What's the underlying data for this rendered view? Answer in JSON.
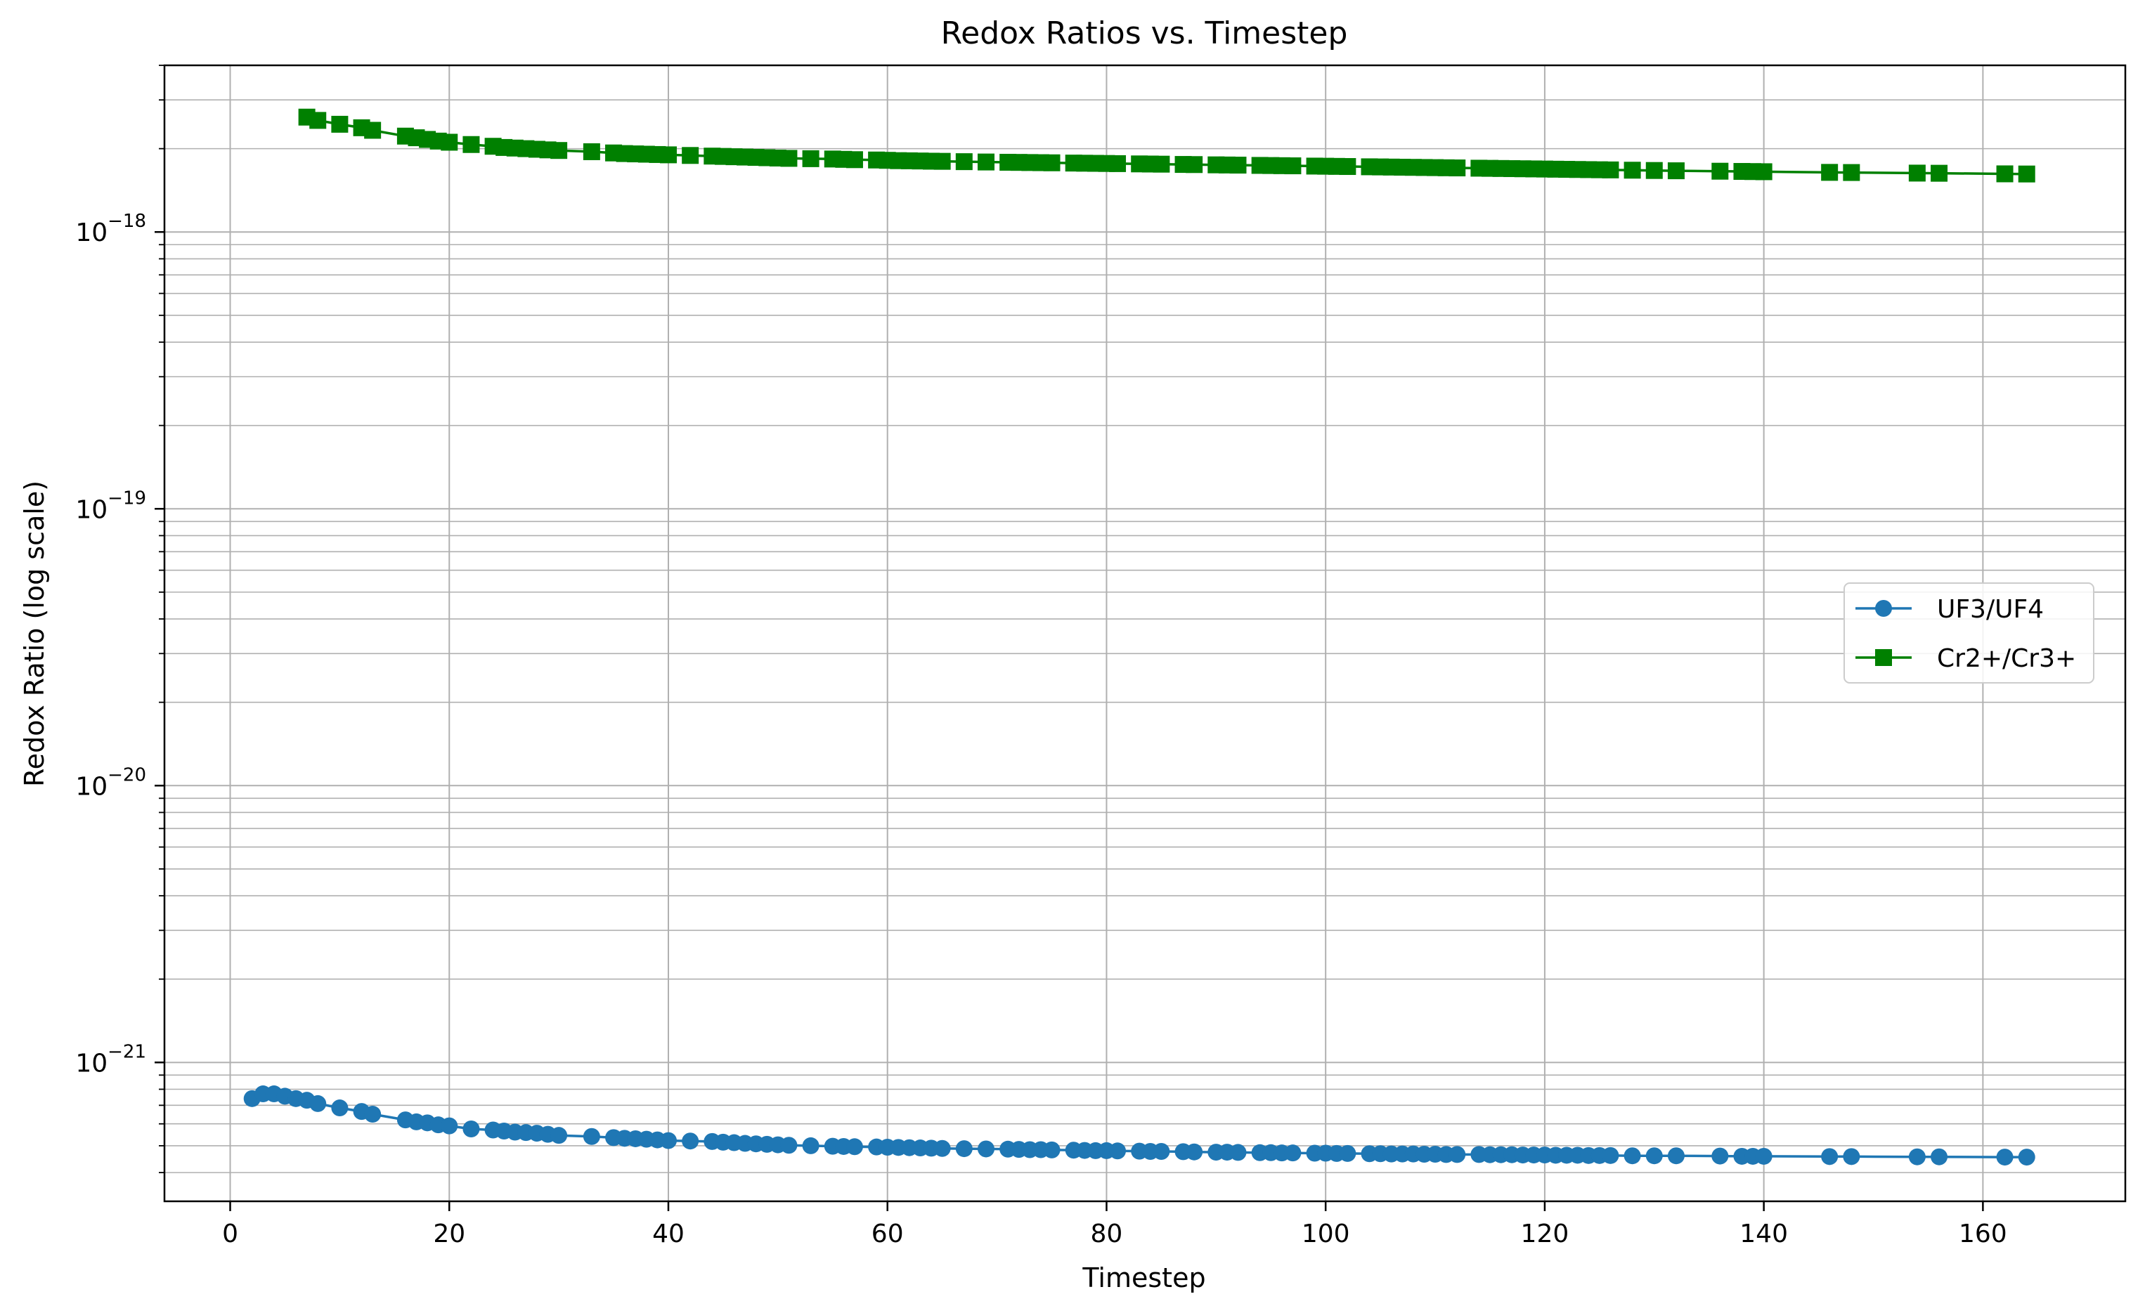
{
  "chart_data": {
    "type": "line",
    "title": "Redox Ratios vs. Timestep",
    "xlabel": "Timestep",
    "ylabel": "Redox Ratio (log scale)",
    "yscale": "log",
    "xlim": [
      -6,
      173
    ],
    "ylim": [
      3.15e-22,
      4e-18
    ],
    "grid": true,
    "legend_position": "center-right",
    "x_ticks": [
      0,
      20,
      40,
      60,
      80,
      100,
      120,
      140,
      160
    ],
    "x_tick_labels": [
      "0",
      "20",
      "40",
      "60",
      "80",
      "100",
      "120",
      "140",
      "160"
    ],
    "y_ticks": [
      {
        "value": 1e-18,
        "base": "10",
        "exp": "−18"
      },
      {
        "value": 1e-19,
        "base": "10",
        "exp": "−19"
      },
      {
        "value": 1e-20,
        "base": "10",
        "exp": "−20"
      },
      {
        "value": 1e-21,
        "base": "10",
        "exp": "−21"
      }
    ],
    "series": [
      {
        "name": "UF3/UF4",
        "color": "#1f77b4",
        "marker": "circle",
        "x": [
          2,
          3,
          4,
          5,
          6,
          7,
          8,
          10,
          12,
          13,
          16,
          17,
          18,
          19,
          20,
          22,
          24,
          25,
          26,
          27,
          28,
          29,
          30,
          33,
          35,
          36,
          37,
          38,
          39,
          40,
          42,
          44,
          45,
          46,
          47,
          48,
          49,
          50,
          51,
          53,
          55,
          56,
          57,
          59,
          60,
          61,
          62,
          63,
          64,
          65,
          67,
          69,
          71,
          72,
          73,
          74,
          75,
          77,
          78,
          79,
          80,
          81,
          83,
          84,
          85,
          87,
          88,
          90,
          91,
          92,
          94,
          95,
          96,
          97,
          99,
          100,
          101,
          102,
          104,
          105,
          106,
          107,
          108,
          109,
          110,
          111,
          112,
          114,
          115,
          116,
          117,
          118,
          119,
          120,
          121,
          122,
          123,
          124,
          125,
          126,
          128,
          130,
          132,
          136,
          138,
          139,
          140,
          146,
          148,
          154,
          156,
          162,
          164
        ],
        "y": [
          7.4e-22,
          7.7e-22,
          7.7e-22,
          7.55e-22,
          7.4e-22,
          7.3e-22,
          7.1e-22,
          6.85e-22,
          6.65e-22,
          6.5e-22,
          6.2e-22,
          6.1e-22,
          6.05e-22,
          5.95e-22,
          5.9e-22,
          5.75e-22,
          5.7e-22,
          5.65e-22,
          5.6e-22,
          5.58e-22,
          5.55e-22,
          5.5e-22,
          5.45e-22,
          5.4e-22,
          5.35e-22,
          5.32e-22,
          5.3e-22,
          5.28e-22,
          5.25e-22,
          5.22e-22,
          5.2e-22,
          5.18e-22,
          5.15e-22,
          5.13e-22,
          5.1e-22,
          5.08e-22,
          5.06e-22,
          5.04e-22,
          5.02e-22,
          5e-22,
          4.98e-22,
          4.97e-22,
          4.96e-22,
          4.95e-22,
          4.94e-22,
          4.93e-22,
          4.92e-22,
          4.91e-22,
          4.9e-22,
          4.89e-22,
          4.88e-22,
          4.87e-22,
          4.86e-22,
          4.85e-22,
          4.84e-22,
          4.84e-22,
          4.83e-22,
          4.82e-22,
          4.81e-22,
          4.8e-22,
          4.8e-22,
          4.79e-22,
          4.78e-22,
          4.77e-22,
          4.77e-22,
          4.76e-22,
          4.75e-22,
          4.74e-22,
          4.74e-22,
          4.73e-22,
          4.72e-22,
          4.72e-22,
          4.71e-22,
          4.71e-22,
          4.7e-22,
          4.7e-22,
          4.69e-22,
          4.69e-22,
          4.68e-22,
          4.68e-22,
          4.67e-22,
          4.67e-22,
          4.67e-22,
          4.66e-22,
          4.66e-22,
          4.65e-22,
          4.65e-22,
          4.65e-22,
          4.64e-22,
          4.64e-22,
          4.64e-22,
          4.63e-22,
          4.63e-22,
          4.63e-22,
          4.62e-22,
          4.62e-22,
          4.62e-22,
          4.61e-22,
          4.61e-22,
          4.61e-22,
          4.6e-22,
          4.6e-22,
          4.6e-22,
          4.59e-22,
          4.58e-22,
          4.58e-22,
          4.58e-22,
          4.57e-22,
          4.57e-22,
          4.56e-22,
          4.56e-22,
          4.55e-22,
          4.55e-22
        ]
      },
      {
        "name": "Cr2+/Cr3+",
        "color": "#008000",
        "marker": "square",
        "x": [
          7,
          8,
          10,
          12,
          13,
          16,
          17,
          18,
          19,
          20,
          22,
          24,
          25,
          26,
          27,
          28,
          29,
          30,
          33,
          35,
          36,
          37,
          38,
          39,
          40,
          42,
          44,
          45,
          46,
          47,
          48,
          49,
          50,
          51,
          53,
          55,
          56,
          57,
          59,
          60,
          61,
          62,
          63,
          64,
          65,
          67,
          69,
          71,
          72,
          73,
          74,
          75,
          77,
          78,
          79,
          80,
          81,
          83,
          84,
          85,
          87,
          88,
          90,
          91,
          92,
          94,
          95,
          96,
          97,
          99,
          100,
          101,
          102,
          104,
          105,
          106,
          107,
          108,
          109,
          110,
          111,
          112,
          114,
          115,
          116,
          117,
          118,
          119,
          120,
          121,
          122,
          123,
          124,
          125,
          126,
          128,
          130,
          132,
          136,
          138,
          139,
          140,
          146,
          148,
          154,
          156,
          162,
          164
        ],
        "y": [
          2.6e-18,
          2.53e-18,
          2.45e-18,
          2.38e-18,
          2.33e-18,
          2.22e-18,
          2.19e-18,
          2.16e-18,
          2.13e-18,
          2.11e-18,
          2.07e-18,
          2.04e-18,
          2.02e-18,
          2.01e-18,
          2e-18,
          1.99e-18,
          1.98e-18,
          1.97e-18,
          1.95e-18,
          1.93e-18,
          1.92e-18,
          1.915e-18,
          1.91e-18,
          1.905e-18,
          1.9e-18,
          1.89e-18,
          1.88e-18,
          1.875e-18,
          1.87e-18,
          1.865e-18,
          1.86e-18,
          1.855e-18,
          1.85e-18,
          1.845e-18,
          1.84e-18,
          1.835e-18,
          1.83e-18,
          1.825e-18,
          1.82e-18,
          1.815e-18,
          1.81e-18,
          1.808e-18,
          1.805e-18,
          1.802e-18,
          1.8e-18,
          1.795e-18,
          1.79e-18,
          1.786e-18,
          1.784e-18,
          1.782e-18,
          1.78e-18,
          1.778e-18,
          1.774e-18,
          1.772e-18,
          1.77e-18,
          1.768e-18,
          1.766e-18,
          1.762e-18,
          1.76e-18,
          1.758e-18,
          1.754e-18,
          1.752e-18,
          1.748e-18,
          1.746e-18,
          1.744e-18,
          1.74e-18,
          1.738e-18,
          1.736e-18,
          1.734e-18,
          1.73e-18,
          1.728e-18,
          1.726e-18,
          1.724e-18,
          1.72e-18,
          1.718e-18,
          1.716e-18,
          1.714e-18,
          1.712e-18,
          1.71e-18,
          1.708e-18,
          1.706e-18,
          1.704e-18,
          1.7e-18,
          1.698e-18,
          1.696e-18,
          1.694e-18,
          1.692e-18,
          1.69e-18,
          1.688e-18,
          1.686e-18,
          1.684e-18,
          1.682e-18,
          1.68e-18,
          1.678e-18,
          1.676e-18,
          1.672e-18,
          1.668e-18,
          1.664e-18,
          1.658e-18,
          1.655e-18,
          1.653e-18,
          1.651e-18,
          1.642e-18,
          1.64e-18,
          1.632e-18,
          1.63e-18,
          1.622e-18,
          1.62e-18
        ]
      }
    ]
  }
}
